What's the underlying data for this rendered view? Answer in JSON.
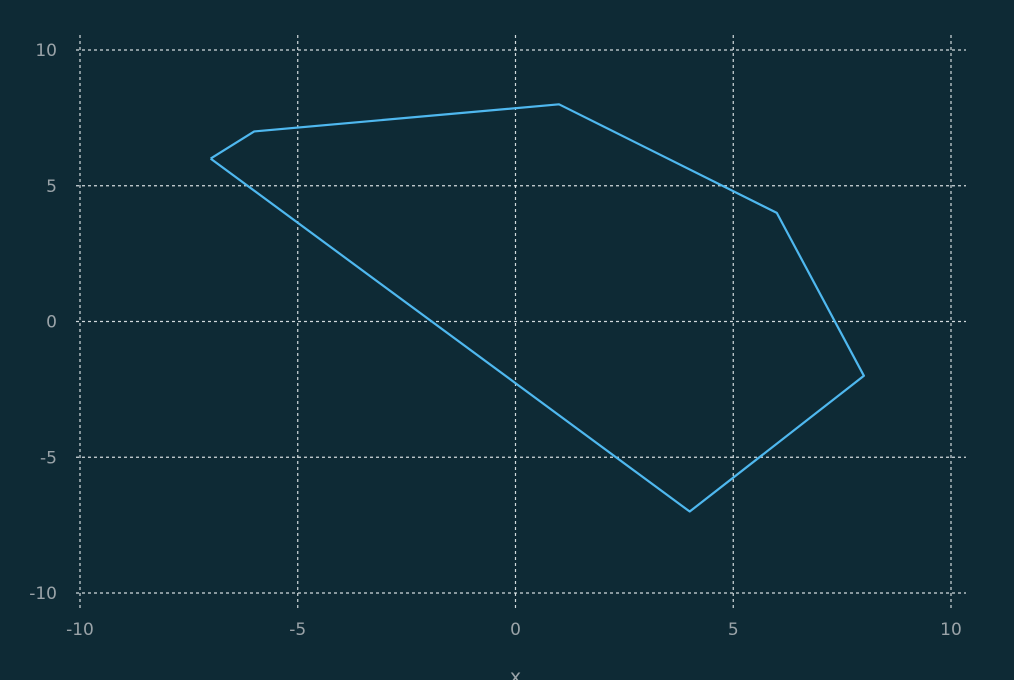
{
  "colors": {
    "background": "#0e2a35",
    "grid": "#e8eef0",
    "text": "#9aa3a8",
    "series": "#4fb8ef"
  },
  "chart_data": {
    "type": "line",
    "title": "",
    "xlabel": "x",
    "ylabel": "",
    "xlim": [
      -10,
      10
    ],
    "ylim": [
      -10,
      10
    ],
    "x_ticks": [
      -10,
      -5,
      0,
      5,
      10
    ],
    "y_ticks": [
      -10,
      -5,
      0,
      5,
      10
    ],
    "grid": true,
    "series": [
      {
        "closed": true,
        "color": "#4fb8ef",
        "points": [
          [
            -7,
            6
          ],
          [
            -6,
            7
          ],
          [
            1,
            8
          ],
          [
            6,
            4
          ],
          [
            8,
            -2
          ],
          [
            4,
            -7
          ],
          [
            -7,
            6
          ]
        ]
      }
    ]
  }
}
